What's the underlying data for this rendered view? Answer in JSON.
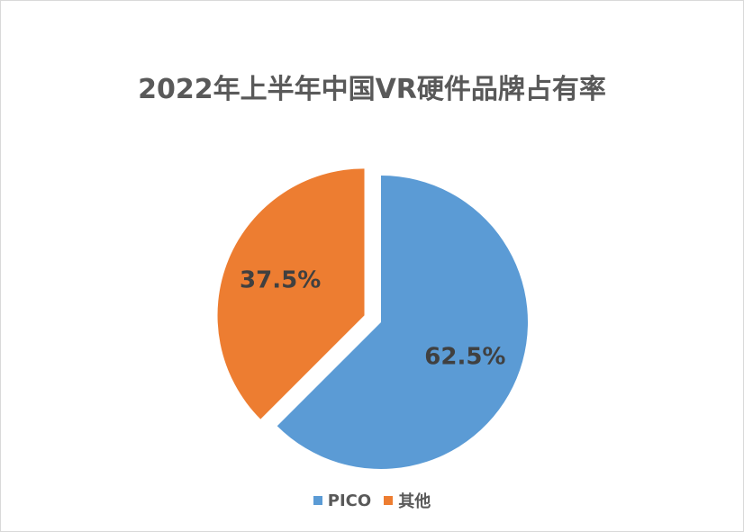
{
  "chart_data": {
    "type": "pie",
    "title": "2022年上半年中国VR硬件品牌占有率",
    "categories": [
      "PICO",
      "其他"
    ],
    "values": [
      62.5,
      37.5
    ],
    "labels": [
      "62.5%",
      "37.5%"
    ],
    "colors": [
      "#5b9bd5",
      "#ed7d31"
    ],
    "exploded": [
      false,
      true
    ],
    "legend_position": "bottom"
  }
}
